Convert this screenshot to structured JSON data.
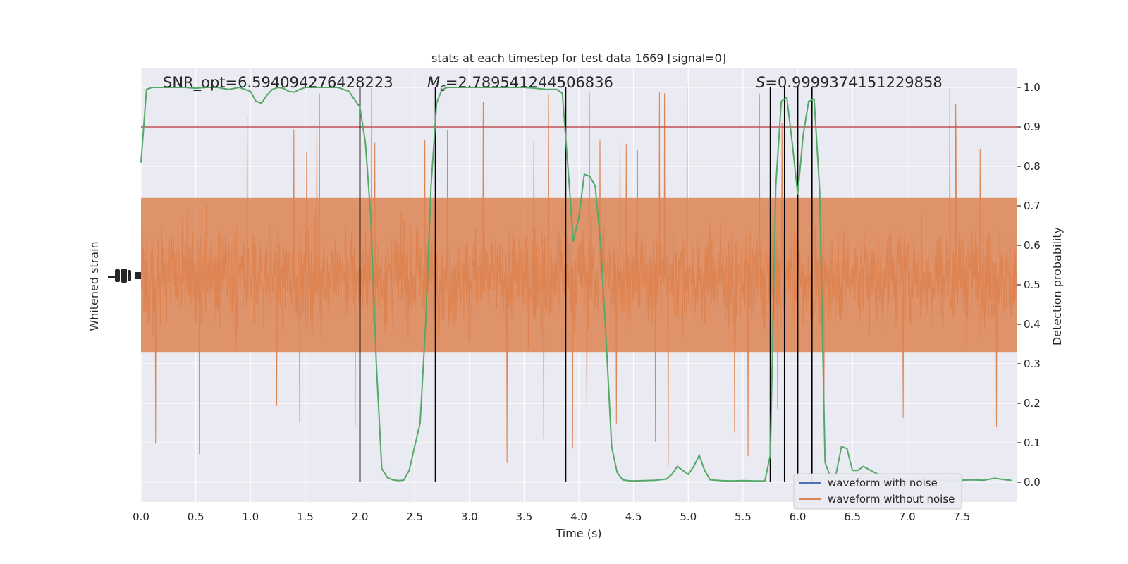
{
  "chart_data": {
    "type": "line",
    "title": "stats at each timestep for test data 1669 [signal=0]",
    "xlabel": "Time (s)",
    "ylabel_left": "Whitened strain",
    "ylabel_right": "Detection probability",
    "xlim": [
      0,
      8
    ],
    "ylim_right": [
      -0.05,
      1.05
    ],
    "x_ticks": [
      0.0,
      0.5,
      1.0,
      1.5,
      2.0,
      2.5,
      3.0,
      3.5,
      4.0,
      4.5,
      5.0,
      5.5,
      6.0,
      6.5,
      7.0,
      7.5
    ],
    "x_tick_labels": [
      "0.0",
      "0.5",
      "1.0",
      "1.5",
      "2.0",
      "2.5",
      "3.0",
      "3.5",
      "4.0",
      "4.5",
      "5.0",
      "5.5",
      "6.0",
      "6.5",
      "7.0",
      "7.5"
    ],
    "y_ticks_right": [
      0.0,
      0.1,
      0.2,
      0.3,
      0.4,
      0.5,
      0.6,
      0.7,
      0.8,
      0.9,
      1.0
    ],
    "y_tick_labels_right": [
      "0.0",
      "0.1",
      "0.2",
      "0.3",
      "0.4",
      "0.5",
      "0.6",
      "0.7",
      "0.8",
      "0.9",
      "1.0"
    ],
    "annotations": {
      "snr": "SNR_opt=6.594094276428223",
      "mc_symbol": "M",
      "mc_sub": "c",
      "mc_value": "=2.789541244506836",
      "s_symbol": "S",
      "s_value": "=0.9999374151229858"
    },
    "threshold": 0.9,
    "vertical_lines": [
      2.0,
      2.69,
      3.88,
      5.75,
      5.88,
      6.0,
      6.13
    ],
    "legend": {
      "placement": "lower-right",
      "entries": [
        {
          "label": "waveform with noise",
          "color": "#4c72b0"
        },
        {
          "label": "waveform without noise",
          "color": "#dd8452"
        }
      ]
    },
    "detection_probability": {
      "color": "#55a868",
      "x": [
        0.0,
        0.05,
        0.1,
        0.15,
        0.2,
        0.3,
        0.4,
        0.5,
        0.6,
        0.7,
        0.8,
        0.9,
        1.0,
        1.05,
        1.1,
        1.15,
        1.2,
        1.25,
        1.3,
        1.35,
        1.4,
        1.45,
        1.5,
        1.6,
        1.7,
        1.8,
        1.9,
        1.95,
        2.0,
        2.05,
        2.1,
        2.15,
        2.2,
        2.25,
        2.3,
        2.35,
        2.4,
        2.45,
        2.5,
        2.55,
        2.6,
        2.65,
        2.7,
        2.75,
        2.8,
        2.9,
        3.0,
        3.1,
        3.2,
        3.3,
        3.4,
        3.5,
        3.6,
        3.7,
        3.8,
        3.85,
        3.9,
        3.95,
        4.0,
        4.05,
        4.1,
        4.15,
        4.2,
        4.25,
        4.3,
        4.35,
        4.4,
        4.45,
        4.5,
        4.6,
        4.7,
        4.8,
        4.85,
        4.9,
        4.95,
        5.0,
        5.05,
        5.1,
        5.15,
        5.2,
        5.3,
        5.4,
        5.5,
        5.6,
        5.7,
        5.75,
        5.8,
        5.85,
        5.9,
        5.95,
        6.0,
        6.05,
        6.1,
        6.15,
        6.2,
        6.25,
        6.3,
        6.35,
        6.4,
        6.45,
        6.5,
        6.55,
        6.6,
        6.7,
        6.8,
        6.9,
        7.0,
        7.2,
        7.4,
        7.6,
        7.7,
        7.8,
        7.9,
        7.95
      ],
      "values": [
        0.81,
        0.995,
        1.0,
        1.0,
        1.0,
        1.0,
        1.0,
        0.998,
        1.0,
        1.0,
        0.995,
        1.0,
        0.99,
        0.965,
        0.96,
        0.98,
        0.995,
        1.0,
        0.998,
        0.99,
        0.988,
        0.995,
        1.0,
        1.0,
        1.0,
        1.0,
        0.99,
        0.97,
        0.95,
        0.86,
        0.67,
        0.3,
        0.035,
        0.012,
        0.006,
        0.004,
        0.005,
        0.03,
        0.09,
        0.15,
        0.4,
        0.75,
        0.96,
        0.995,
        1.0,
        1.0,
        1.0,
        1.0,
        1.0,
        1.0,
        1.0,
        1.0,
        0.998,
        0.995,
        0.995,
        0.985,
        0.8,
        0.61,
        0.67,
        0.78,
        0.775,
        0.75,
        0.6,
        0.36,
        0.09,
        0.025,
        0.006,
        0.004,
        0.003,
        0.004,
        0.005,
        0.008,
        0.02,
        0.04,
        0.03,
        0.02,
        0.04,
        0.068,
        0.03,
        0.006,
        0.004,
        0.003,
        0.004,
        0.003,
        0.003,
        0.07,
        0.75,
        0.965,
        0.975,
        0.86,
        0.73,
        0.88,
        0.965,
        0.97,
        0.74,
        0.05,
        0.012,
        0.02,
        0.09,
        0.085,
        0.03,
        0.03,
        0.04,
        0.025,
        0.013,
        0.006,
        0.004,
        0.005,
        0.004,
        0.006,
        0.005,
        0.01,
        0.006,
        0.005
      ]
    },
    "strain_without_noise": {
      "color": "#dd8452",
      "description_of_shape": "dense noisy strain trace plotted on left axis, spanning roughly 0.3-0.75 in right-axis units with spikes to 0.0-1.0"
    }
  }
}
